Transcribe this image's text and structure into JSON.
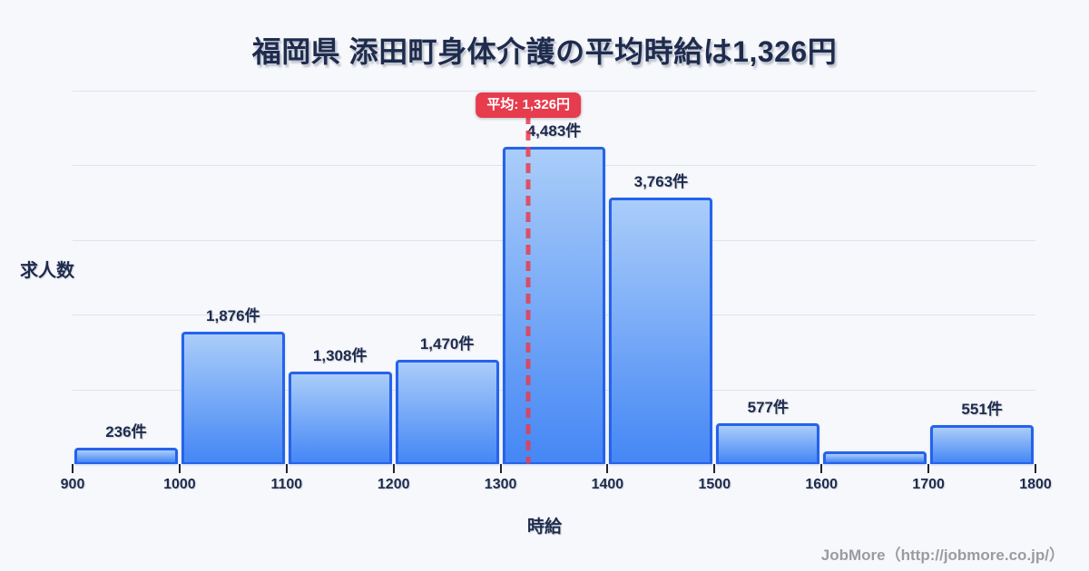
{
  "title": "福岡県 添田町身体介護の平均時給は1,326円",
  "footer": "JobMore（http://jobmore.co.jp/）",
  "colors": {
    "background": "#f7f8fb",
    "ink": "#1e2b4d",
    "grid": "#dde3ef",
    "bar_border": "#2563eb",
    "bar_gradient_top": "#aacdf9",
    "bar_gradient_bottom": "#4587f5",
    "accent_red": "#e73c4e",
    "footer_gray": "#9b9ba1"
  },
  "chart_data": {
    "type": "bar",
    "title": "福岡県 添田町身体介護の平均時給は1,326円",
    "xlabel": "時給",
    "ylabel": "求人数",
    "x_range": [
      900,
      1800
    ],
    "ylim": [
      0,
      5280
    ],
    "grid": true,
    "x_ticks": [
      "900",
      "1000",
      "1100",
      "1200",
      "1300",
      "1400",
      "1500",
      "1600",
      "1700",
      "1800"
    ],
    "bins": [
      {
        "range": [
          900,
          1000
        ],
        "value": 236,
        "label": "236件"
      },
      {
        "range": [
          1000,
          1100
        ],
        "value": 1876,
        "label": "1,876件"
      },
      {
        "range": [
          1100,
          1200
        ],
        "value": 1308,
        "label": "1,308件"
      },
      {
        "range": [
          1200,
          1300
        ],
        "value": 1470,
        "label": "1,470件"
      },
      {
        "range": [
          1300,
          1400
        ],
        "value": 4483,
        "label": "4,483件"
      },
      {
        "range": [
          1400,
          1500
        ],
        "value": 3763,
        "label": "3,763件"
      },
      {
        "range": [
          1500,
          1600
        ],
        "value": 577,
        "label": "577件"
      },
      {
        "range": [
          1600,
          1700
        ],
        "value": 179,
        "label": ""
      },
      {
        "range": [
          1700,
          1800
        ],
        "value": 551,
        "label": "551件"
      }
    ],
    "average": {
      "value": 1326,
      "label": "平均: 1,326円"
    }
  }
}
